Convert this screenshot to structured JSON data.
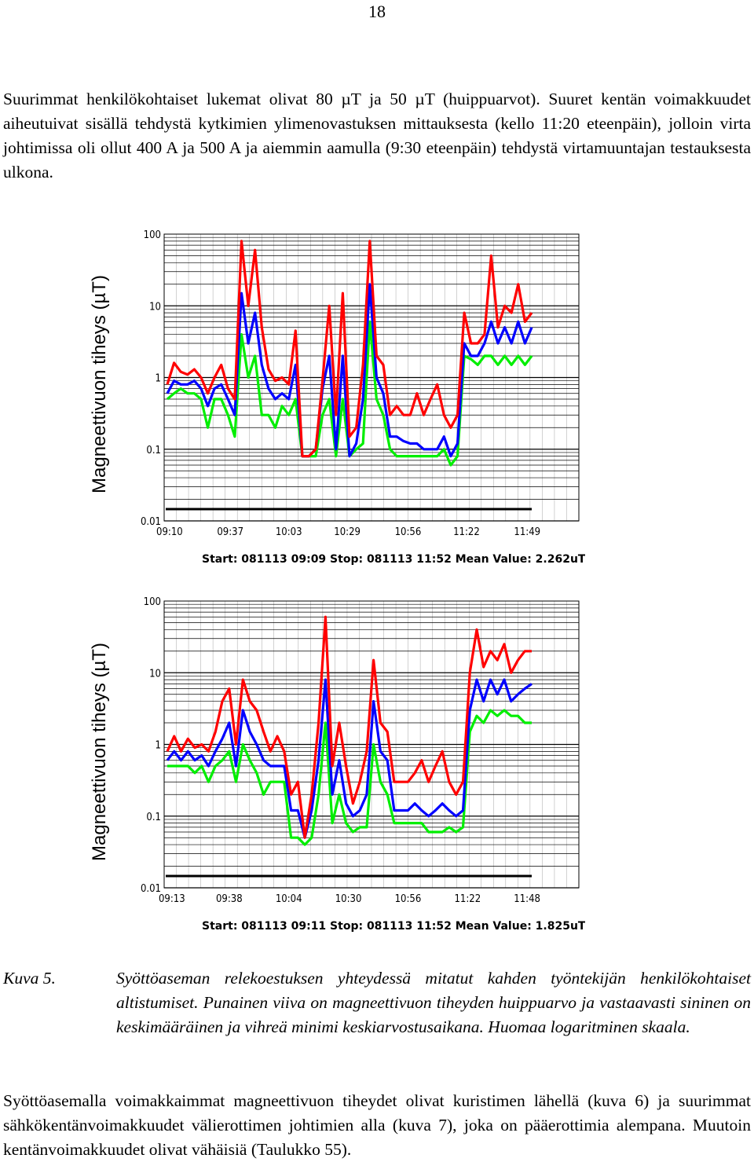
{
  "page_number": "18",
  "paragraph1": "Suurimmat henkilökohtaiset lukemat olivat 80 µT ja 50 µT (huippuarvot). Suuret kentän voimakkuudet aiheutuivat sisällä tehdystä kytkimien ylimenovastuksen mittauksesta (kello 11:20 eteenpäin), jolloin virta johtimissa oli ollut 400 A ja 500 A ja aiemmin aamulla (9:30 eteenpäin) tehdystä virtamuuntajan testauksesta ulkona.",
  "paragraph2": "Syöttöasemalla voimakkaimmat magneettivuon tiheydet olivat kuristimen lähellä (kuva 6) ja suurimmat sähkökentänvoimakkuudet välierottimen johtimien alla (kuva 7), joka on pääerottimia alempana. Muutoin kentänvoimakkuudet olivat vähäisiä (Taulukko 55).",
  "caption": {
    "label": "Kuva 5.",
    "text": "Syöttöaseman relekoestuksen yhteydessä mitatut kahden työntekijän henkilökohtaiset altistumiset. Punainen viiva on magneettivuon tiheyden huippuarvo ja vastaavasti sininen on keskimääräinen ja vihreä minimi keskiarvostusaikana. Huomaa logaritminen skaala."
  },
  "colors": {
    "max": "#ff0000",
    "mean": "#0000ff",
    "min": "#00ee00"
  },
  "chart_data": [
    {
      "type": "line",
      "ylabel": "Magneettivuon tiheys (µT)",
      "yscale": "log",
      "ylim": [
        0.01,
        100
      ],
      "yticks": [
        "100",
        "10",
        "1",
        "0.1",
        "0.01"
      ],
      "xticks": [
        "09:10",
        "09:37",
        "10:03",
        "10:29",
        "10:56",
        "11:22",
        "11:49"
      ],
      "footer": "Start: 081113 09:09 Stop: 081113 11:52 Mean Value: 2.262uT",
      "x": [
        "09:09",
        "09:12",
        "09:15",
        "09:18",
        "09:21",
        "09:24",
        "09:27",
        "09:30",
        "09:33",
        "09:36",
        "09:39",
        "09:42",
        "09:45",
        "09:48",
        "09:51",
        "09:54",
        "09:57",
        "10:00",
        "10:03",
        "10:06",
        "10:09",
        "10:12",
        "10:15",
        "10:18",
        "10:21",
        "10:24",
        "10:27",
        "10:30",
        "10:33",
        "10:36",
        "10:39",
        "10:42",
        "10:45",
        "10:48",
        "10:51",
        "10:54",
        "10:57",
        "11:00",
        "11:03",
        "11:06",
        "11:09",
        "11:12",
        "11:15",
        "11:18",
        "11:21",
        "11:24",
        "11:27",
        "11:30",
        "11:33",
        "11:36",
        "11:39",
        "11:42",
        "11:45",
        "11:48",
        "11:51"
      ],
      "series": [
        {
          "key": "max",
          "values": [
            0.8,
            1.6,
            1.2,
            1.1,
            1.3,
            1.0,
            0.6,
            1.0,
            1.5,
            0.7,
            0.5,
            80,
            10,
            60,
            5,
            1.3,
            0.9,
            1.0,
            0.8,
            4.5,
            0.08,
            0.08,
            0.1,
            0.9,
            10,
            0.3,
            15,
            0.15,
            0.2,
            1.5,
            80,
            2,
            1.5,
            0.3,
            0.4,
            0.3,
            0.3,
            0.6,
            0.3,
            0.5,
            0.8,
            0.3,
            0.2,
            0.3,
            8,
            3,
            3,
            4,
            50,
            5,
            10,
            8,
            20,
            6,
            8
          ]
        },
        {
          "key": "mean",
          "values": [
            0.6,
            0.9,
            0.8,
            0.8,
            0.9,
            0.7,
            0.4,
            0.7,
            0.8,
            0.5,
            0.3,
            15,
            3,
            8,
            1.5,
            0.7,
            0.5,
            0.6,
            0.5,
            1.5,
            0.08,
            0.08,
            0.1,
            0.7,
            2,
            0.1,
            2,
            0.08,
            0.12,
            0.5,
            20,
            1,
            0.6,
            0.15,
            0.15,
            0.13,
            0.12,
            0.12,
            0.1,
            0.1,
            0.1,
            0.15,
            0.08,
            0.12,
            3,
            2,
            2,
            3,
            6,
            3,
            5,
            3,
            6,
            3,
            5
          ]
        },
        {
          "key": "min",
          "values": [
            0.5,
            0.6,
            0.7,
            0.6,
            0.6,
            0.5,
            0.2,
            0.5,
            0.5,
            0.3,
            0.15,
            4,
            1,
            2,
            0.3,
            0.3,
            0.2,
            0.4,
            0.3,
            0.5,
            0.08,
            0.08,
            0.08,
            0.3,
            0.5,
            0.08,
            0.5,
            0.08,
            0.1,
            0.12,
            6,
            0.5,
            0.3,
            0.1,
            0.08,
            0.08,
            0.08,
            0.08,
            0.08,
            0.08,
            0.08,
            0.1,
            0.06,
            0.08,
            2,
            1.8,
            1.5,
            2,
            2,
            1.5,
            2,
            1.5,
            2,
            1.5,
            2
          ]
        }
      ]
    },
    {
      "type": "line",
      "ylabel": "Magneettivuon tiheys (µT)",
      "yscale": "log",
      "ylim": [
        0.01,
        100
      ],
      "yticks": [
        "100",
        "10",
        "1",
        "0.1",
        "0.01"
      ],
      "xticks": [
        "09:13",
        "09:38",
        "10:04",
        "10:30",
        "10:56",
        "11:22",
        "11:48"
      ],
      "footer": "Start: 081113 09:11 Stop: 081113 11:52 Mean Value: 1.825uT",
      "x": [
        "09:11",
        "09:14",
        "09:17",
        "09:20",
        "09:23",
        "09:26",
        "09:29",
        "09:32",
        "09:35",
        "09:38",
        "09:41",
        "09:44",
        "09:47",
        "09:50",
        "09:53",
        "09:56",
        "09:59",
        "10:02",
        "10:05",
        "10:08",
        "10:11",
        "10:14",
        "10:17",
        "10:20",
        "10:23",
        "10:26",
        "10:29",
        "10:32",
        "10:35",
        "10:38",
        "10:41",
        "10:44",
        "10:47",
        "10:50",
        "10:53",
        "10:56",
        "10:59",
        "11:02",
        "11:05",
        "11:08",
        "11:11",
        "11:14",
        "11:17",
        "11:20",
        "11:23",
        "11:26",
        "11:29",
        "11:32",
        "11:35",
        "11:38",
        "11:41",
        "11:44",
        "11:47",
        "11:50"
      ],
      "series": [
        {
          "key": "max",
          "values": [
            0.8,
            1.3,
            0.8,
            1.2,
            0.9,
            1.0,
            0.8,
            1.5,
            4,
            6,
            1.0,
            8,
            4,
            3,
            1.5,
            0.8,
            1.3,
            0.8,
            0.2,
            0.3,
            0.05,
            0.2,
            2,
            60,
            0.5,
            2,
            0.5,
            0.15,
            0.3,
            0.8,
            15,
            2,
            1.5,
            0.3,
            0.3,
            0.3,
            0.4,
            0.6,
            0.3,
            0.5,
            0.8,
            0.3,
            0.2,
            0.3,
            10,
            40,
            12,
            20,
            15,
            25,
            10,
            15,
            20,
            20
          ]
        },
        {
          "key": "mean",
          "values": [
            0.6,
            0.8,
            0.6,
            0.8,
            0.6,
            0.7,
            0.5,
            0.8,
            1.2,
            2,
            0.5,
            3,
            1.5,
            1.0,
            0.6,
            0.5,
            0.5,
            0.5,
            0.12,
            0.12,
            0.05,
            0.12,
            0.6,
            8,
            0.2,
            0.6,
            0.15,
            0.1,
            0.12,
            0.2,
            4,
            0.8,
            0.6,
            0.12,
            0.12,
            0.12,
            0.15,
            0.12,
            0.1,
            0.12,
            0.15,
            0.12,
            0.1,
            0.12,
            3,
            8,
            4,
            8,
            5,
            8,
            4,
            5,
            6,
            7
          ]
        },
        {
          "key": "min",
          "values": [
            0.5,
            0.5,
            0.5,
            0.5,
            0.4,
            0.5,
            0.3,
            0.5,
            0.6,
            0.8,
            0.3,
            1.0,
            0.6,
            0.4,
            0.2,
            0.3,
            0.3,
            0.3,
            0.05,
            0.05,
            0.04,
            0.05,
            0.2,
            2,
            0.08,
            0.2,
            0.08,
            0.06,
            0.07,
            0.07,
            1.0,
            0.3,
            0.2,
            0.08,
            0.08,
            0.08,
            0.08,
            0.08,
            0.06,
            0.06,
            0.06,
            0.07,
            0.06,
            0.07,
            1.5,
            2.5,
            2,
            3,
            2.5,
            3,
            2.5,
            2.5,
            2,
            2
          ]
        }
      ]
    }
  ]
}
